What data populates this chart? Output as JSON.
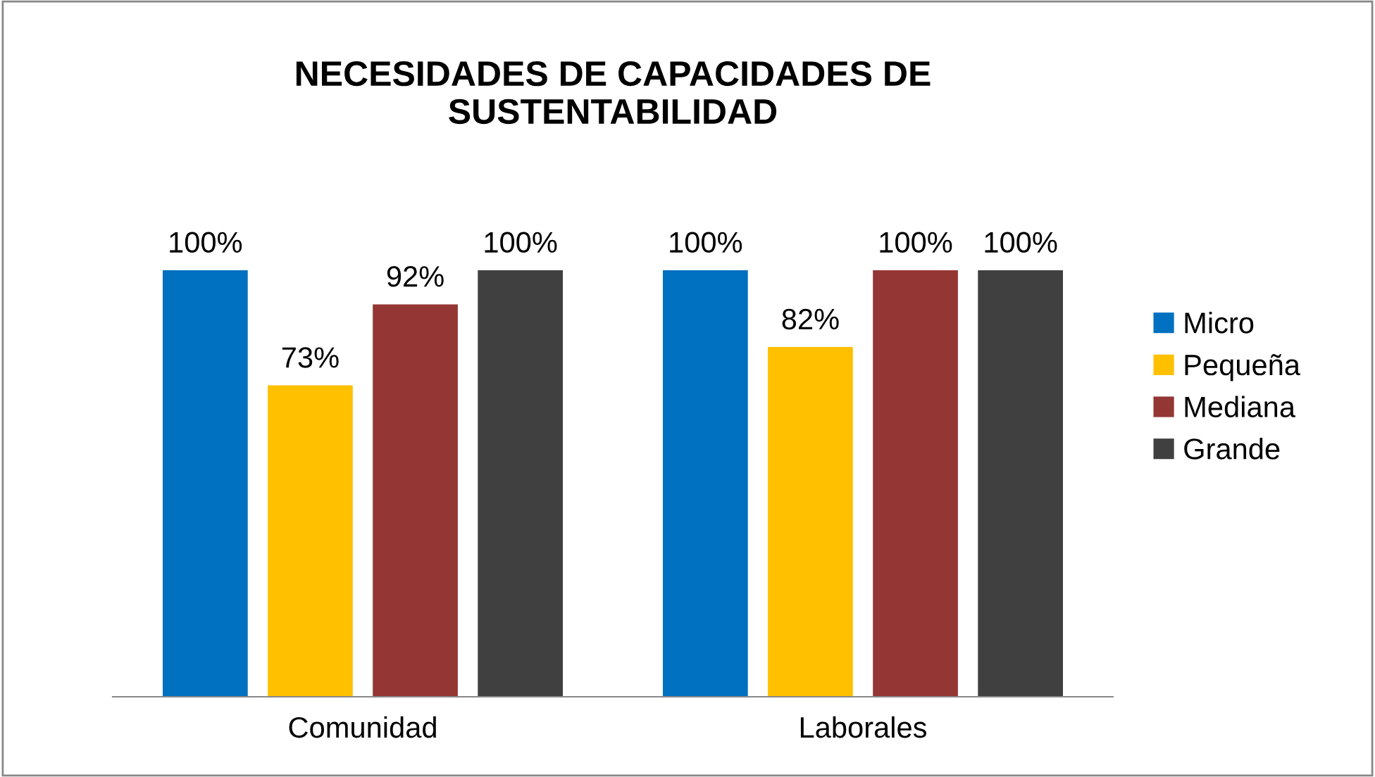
{
  "chart_data": {
    "type": "bar",
    "title": "NECESIDADES DE CAPACIDADES DE\nSUSTENTABILIDAD",
    "categories": [
      "Comunidad",
      "Laborales"
    ],
    "legend": "right",
    "grid": false,
    "series": [
      {
        "name": "Micro",
        "color": "#0070c0",
        "values": [
          100,
          100
        ],
        "value_labels": [
          "100%",
          "100%"
        ]
      },
      {
        "name": "Pequeña",
        "color": "#ffc000",
        "values": [
          73,
          82
        ],
        "value_labels": [
          "73%",
          "82%"
        ]
      },
      {
        "name": "Mediana",
        "color": "#943634",
        "values": [
          92,
          100
        ],
        "value_labels": [
          "92%",
          "100%"
        ]
      },
      {
        "name": "Grande",
        "color": "#404040",
        "values": [
          100,
          100
        ],
        "value_labels": [
          "100%",
          "100%"
        ]
      }
    ]
  }
}
